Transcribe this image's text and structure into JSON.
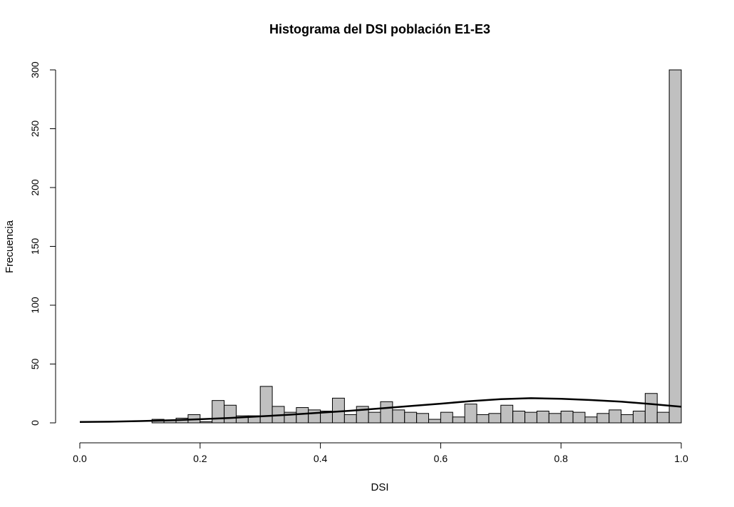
{
  "chart_data": {
    "type": "bar",
    "title": "Histograma del DSI población E1-E3",
    "xlabel": "DSI",
    "ylabel": "Frecuencia",
    "xlim": [
      0,
      1
    ],
    "ylim": [
      0,
      300
    ],
    "x_ticks": [
      "0.0",
      "0.2",
      "0.4",
      "0.6",
      "0.8",
      "1.0"
    ],
    "x_tick_values": [
      0,
      0.2,
      0.4,
      0.6,
      0.8,
      1.0
    ],
    "y_ticks": [
      "0",
      "50",
      "100",
      "150",
      "200",
      "250",
      "300"
    ],
    "y_tick_values": [
      0,
      50,
      100,
      150,
      200,
      250,
      300
    ],
    "grid": false,
    "legend": "none",
    "bin_width": 0.02,
    "bin_starts": [
      0.12,
      0.14,
      0.16,
      0.18,
      0.2,
      0.22,
      0.24,
      0.26,
      0.28,
      0.3,
      0.32,
      0.34,
      0.36,
      0.38,
      0.4,
      0.42,
      0.44,
      0.46,
      0.48,
      0.5,
      0.52,
      0.54,
      0.56,
      0.58,
      0.6,
      0.62,
      0.64,
      0.66,
      0.68,
      0.7,
      0.72,
      0.74,
      0.76,
      0.78,
      0.8,
      0.82,
      0.84,
      0.86,
      0.88,
      0.9,
      0.92,
      0.94,
      0.96,
      0.98
    ],
    "values": [
      3,
      2,
      4,
      7,
      1,
      19,
      15,
      6,
      6,
      31,
      14,
      9,
      13,
      11,
      10,
      21,
      7,
      14,
      9,
      18,
      11,
      9,
      8,
      3,
      9,
      5,
      16,
      7,
      8,
      15,
      10,
      9,
      10,
      8,
      10,
      9,
      5,
      8,
      11,
      7,
      10,
      25,
      9,
      300
    ],
    "overlay_curve": {
      "type": "normal-density",
      "x": [
        0.0,
        0.05,
        0.1,
        0.15,
        0.2,
        0.25,
        0.3,
        0.35,
        0.4,
        0.45,
        0.5,
        0.55,
        0.6,
        0.65,
        0.7,
        0.75,
        0.8,
        0.85,
        0.9,
        0.95,
        1.0
      ],
      "y": [
        0.8,
        1.0,
        1.5,
        2.2,
        3.1,
        4.2,
        5.5,
        7.0,
        8.6,
        10.3,
        12.3,
        14.3,
        16.3,
        18.5,
        20.2,
        21.0,
        20.5,
        19.4,
        18.0,
        16.0,
        13.7
      ]
    }
  },
  "colors": {
    "bar_fill": "#c0c0c0",
    "bar_stroke": "#000000",
    "curve": "#000000"
  }
}
